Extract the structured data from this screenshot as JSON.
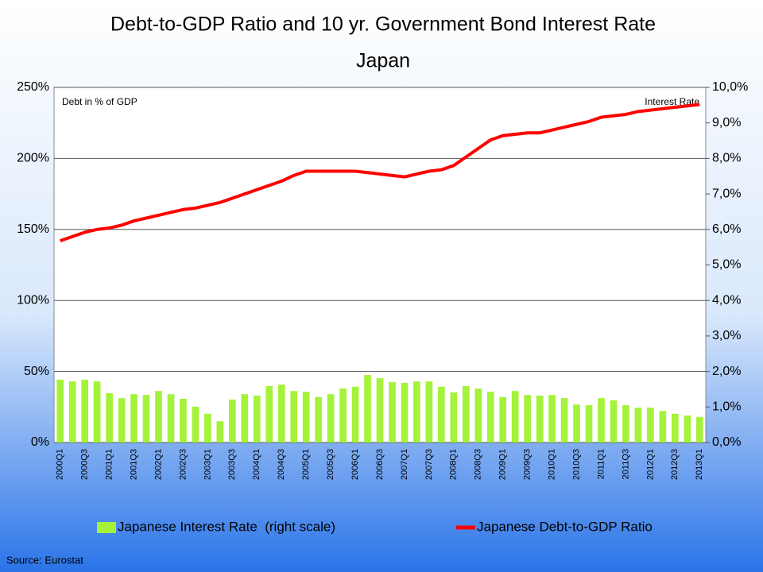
{
  "chart_data": {
    "type": "combo",
    "title": "Debt-to-GDP Ratio and 10 yr. Government Bond Interest Rate",
    "subtitle": "Japan",
    "annotations": [
      "Debt in % of GDP",
      "Interest Rate"
    ],
    "source": "Source: Eurostat",
    "categories": [
      "2000Q1",
      null,
      "2000Q3",
      null,
      "2001Q1",
      null,
      "2001Q3",
      null,
      "2002Q1",
      null,
      "2002Q3",
      null,
      "2003Q1",
      null,
      "2003Q3",
      null,
      "2004Q1",
      null,
      "2004Q3",
      null,
      "2005Q1",
      null,
      "2005Q3",
      null,
      "2006Q1",
      null,
      "2006Q3",
      null,
      "2007Q1",
      null,
      "2007Q3",
      null,
      "2008Q1",
      null,
      "2008Q3",
      null,
      "2009Q1",
      null,
      "2009Q3",
      null,
      "2010Q1",
      null,
      "2010Q3",
      null,
      "2011Q1",
      null,
      "2011Q3",
      null,
      "2012Q1",
      null,
      "2012Q3",
      null,
      "2013Q1"
    ],
    "series": [
      {
        "name": "Japanese Interest Rate  (right scale)",
        "type": "bar",
        "axis": "y2",
        "color": "#a4f23a",
        "values": [
          1.77,
          1.72,
          1.77,
          1.72,
          1.39,
          1.25,
          1.36,
          1.34,
          1.45,
          1.36,
          1.23,
          1.01,
          0.81,
          0.6,
          1.21,
          1.36,
          1.32,
          1.59,
          1.63,
          1.45,
          1.43,
          1.28,
          1.36,
          1.52,
          1.57,
          1.9,
          1.81,
          1.7,
          1.68,
          1.72,
          1.72,
          1.57,
          1.41,
          1.59,
          1.52,
          1.43,
          1.28,
          1.45,
          1.34,
          1.32,
          1.34,
          1.25,
          1.07,
          1.05,
          1.25,
          1.19,
          1.05,
          0.98,
          0.98,
          0.89,
          0.81,
          0.76,
          0.72
        ]
      },
      {
        "name": "Japanese Debt-to-GDP Ratio",
        "type": "line",
        "axis": "y",
        "color": "#ff0000",
        "values": [
          142,
          145,
          148,
          150,
          151,
          153,
          156,
          158,
          160,
          162,
          164,
          165,
          167,
          169,
          172,
          175,
          178,
          181,
          184,
          188,
          191,
          191,
          191,
          191,
          191,
          190,
          189,
          188,
          187,
          189,
          191,
          192,
          195,
          201,
          207,
          213,
          216,
          217,
          218,
          218,
          220,
          222,
          224,
          226,
          229,
          230,
          231,
          233,
          234,
          235,
          236,
          237,
          238
        ]
      }
    ],
    "ylim": [
      0,
      250
    ],
    "yticks": [
      {
        "value": 0,
        "label": "0%"
      },
      {
        "value": 50,
        "label": "50%"
      },
      {
        "value": 100,
        "label": "100%"
      },
      {
        "value": 150,
        "label": "150%"
      },
      {
        "value": 200,
        "label": "200%"
      },
      {
        "value": 250,
        "label": "250%"
      }
    ],
    "y2lim": [
      0,
      10
    ],
    "y2ticks": [
      {
        "value": 0,
        "label": "0,0%"
      },
      {
        "value": 1,
        "label": "1,0%"
      },
      {
        "value": 2,
        "label": "2,0%"
      },
      {
        "value": 3,
        "label": "3,0%"
      },
      {
        "value": 4,
        "label": "4,0%"
      },
      {
        "value": 5,
        "label": "5,0%"
      },
      {
        "value": 6,
        "label": "6,0%"
      },
      {
        "value": 7,
        "label": "7,0%"
      },
      {
        "value": 8,
        "label": "8,0%"
      },
      {
        "value": 9,
        "label": "9,0%"
      },
      {
        "value": 10,
        "label": "10,0%"
      }
    ],
    "grid": true,
    "legend": "bottom"
  }
}
